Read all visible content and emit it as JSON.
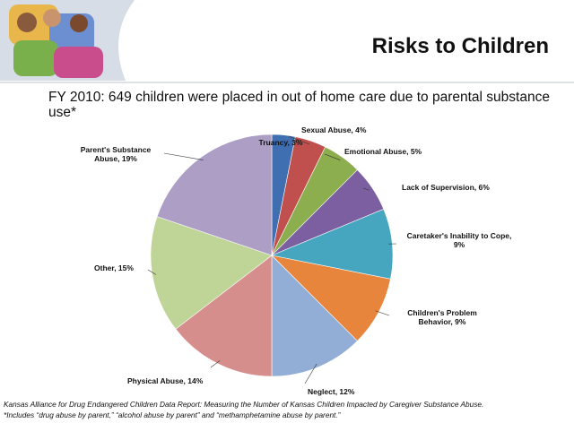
{
  "chart_data": {
    "type": "pie",
    "title": "Risks to Children",
    "subtitle": "FY 2010:  649 children were placed in out of home care due to parental substance use*",
    "categories": [
      "Truancy, 3%",
      "Sexual Abuse, 4%",
      "Emotional Abuse, 5%",
      "Lack of Supervision, 6%",
      "Caretaker's Inability to Cope, 9%",
      "Children's Problem Behavior, 9%",
      "Neglect, 12%",
      "Physical Abuse, 14%",
      "Other, 15%",
      "Parent's Substance Abuse, 19%"
    ],
    "values": [
      3,
      4,
      5,
      6,
      9,
      9,
      12,
      14,
      15,
      19
    ],
    "colors": [
      "#3f6fb0",
      "#c0504d",
      "#8cae4e",
      "#7b5fa0",
      "#46a5bf",
      "#e8853c",
      "#93aed6",
      "#d68e8c",
      "#bfd497",
      "#ad9ec6"
    ],
    "notes": [
      "Kansas Alliance for Drug Endangered Children Data Report: Measuring the Number of Kansas Children Impacted by Caregiver Substance Abuse.",
      "*Includes “drug abuse by parent,” “alcohol abuse by parent” and “methamphetamine abuse by parent.”"
    ]
  }
}
